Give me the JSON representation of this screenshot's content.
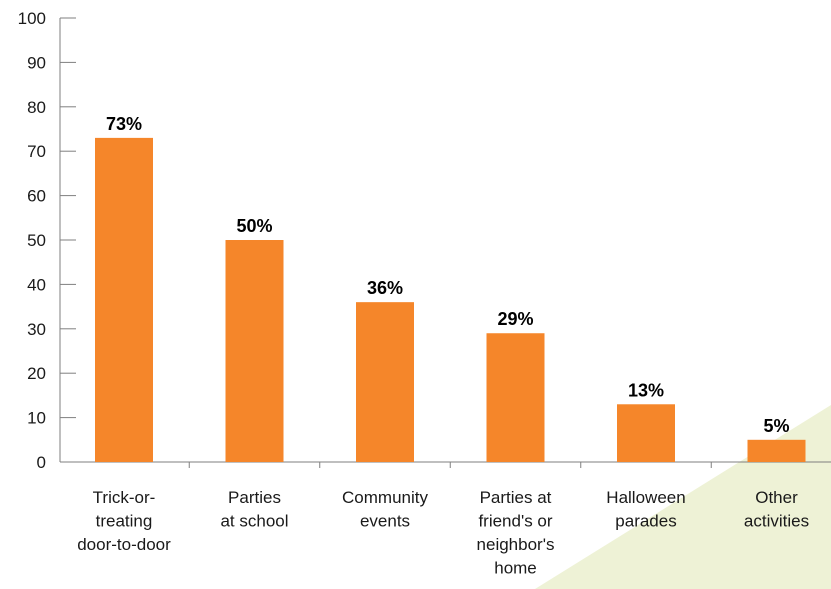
{
  "colors": {
    "bar": "#F5862A",
    "axis": "#7f7f7f",
    "text": "#1a1a1a",
    "corner_tint": "#EEF2D6"
  },
  "chart_data": {
    "type": "bar",
    "title": "",
    "xlabel": "",
    "ylabel": "",
    "ylim": [
      0,
      100
    ],
    "yticks": [
      0,
      10,
      20,
      30,
      40,
      50,
      60,
      70,
      80,
      90,
      100
    ],
    "grid": false,
    "categories": [
      [
        "Trick-or-",
        "treating",
        "door-to-door"
      ],
      [
        "Parties",
        "at school"
      ],
      [
        "Community",
        "events"
      ],
      [
        "Parties at",
        "friend's or",
        "neighbor's",
        "home"
      ],
      [
        "Halloween",
        "parades"
      ],
      [
        "Other",
        "activities"
      ]
    ],
    "values": [
      73,
      50,
      36,
      29,
      13,
      5
    ],
    "data_labels": [
      "73%",
      "50%",
      "36%",
      "29%",
      "13%",
      "5%"
    ]
  }
}
